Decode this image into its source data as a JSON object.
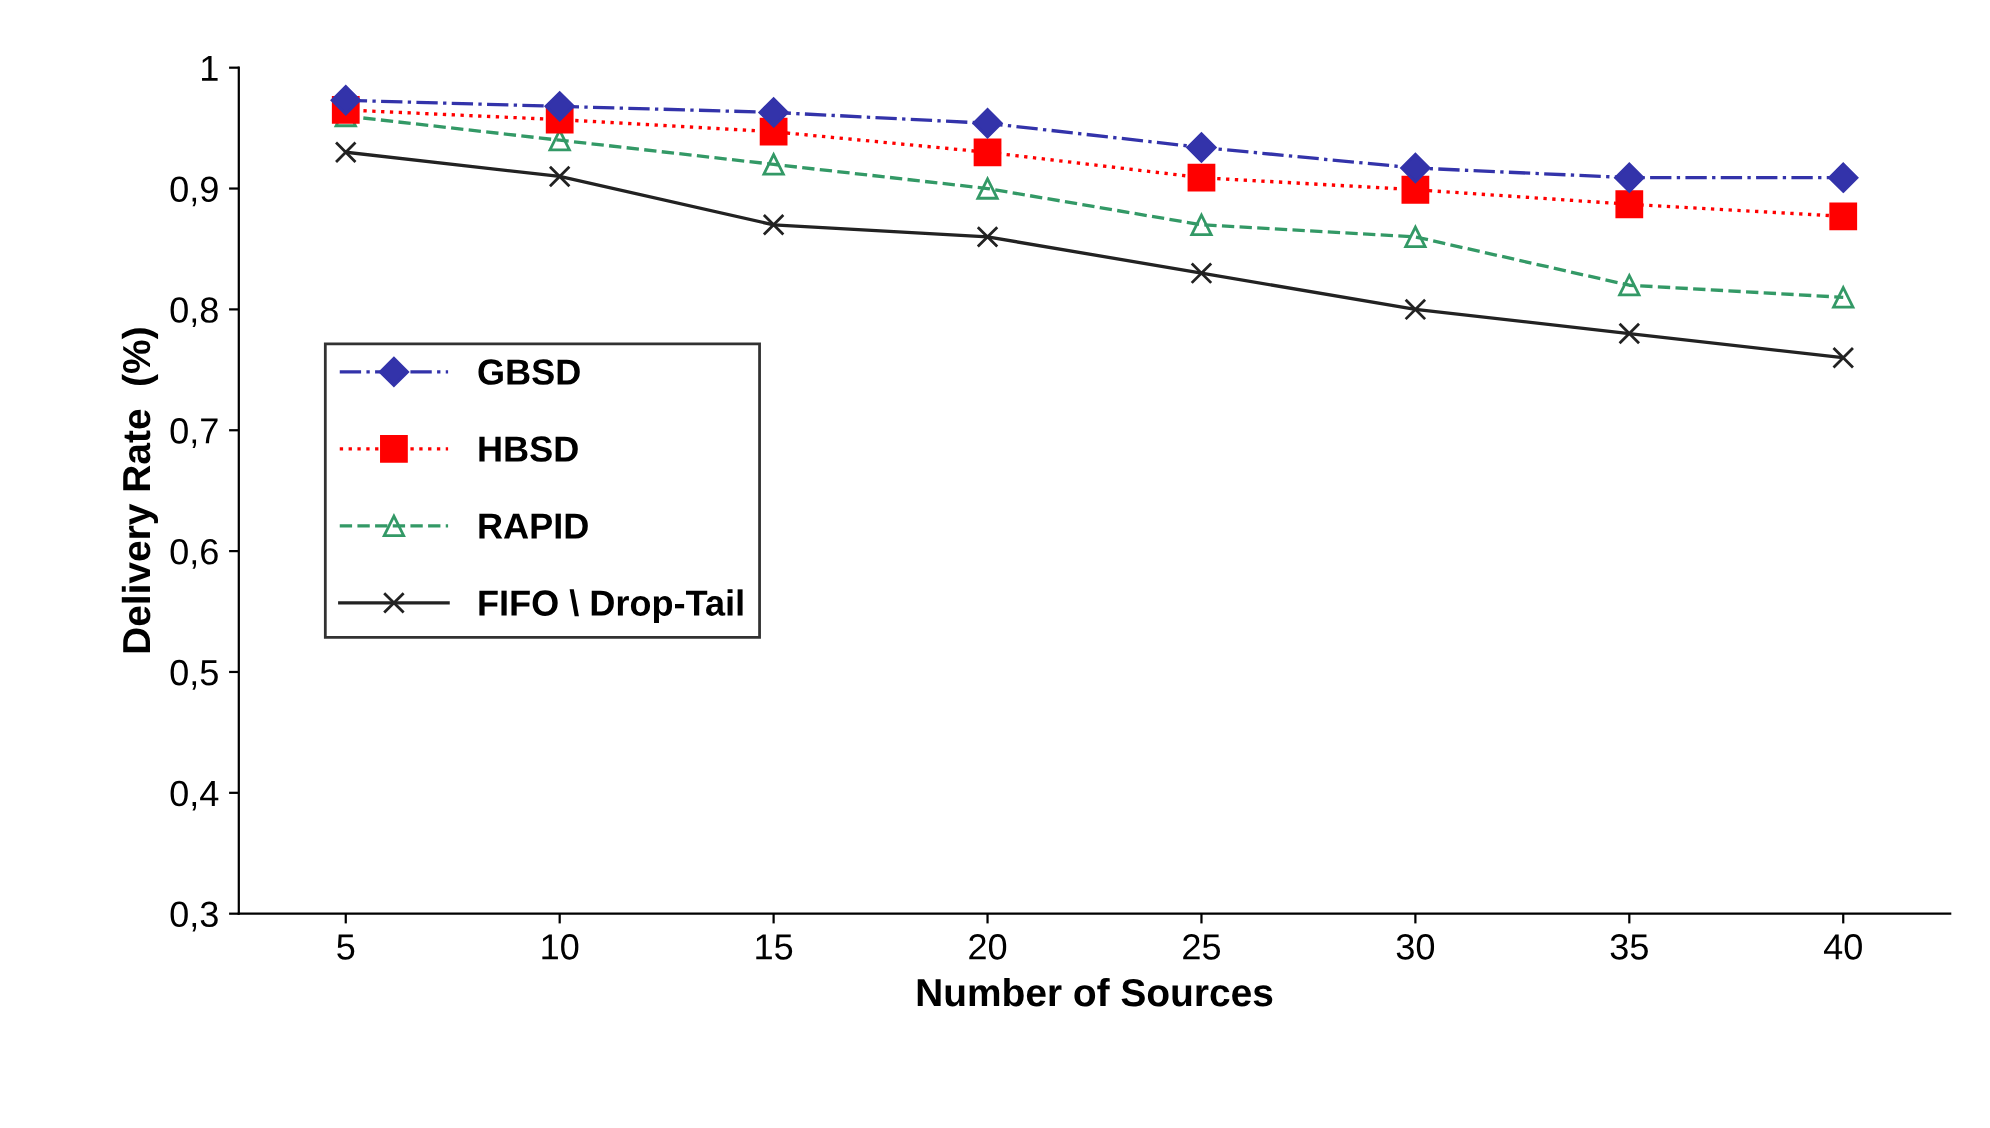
{
  "chart_data": {
    "type": "line",
    "xlabel": "Number of Sources",
    "ylabel": "Delivery Rate  (%)",
    "categories": [
      "5",
      "10",
      "15",
      "20",
      "25",
      "30",
      "35",
      "40"
    ],
    "series": [
      {
        "name": "GBSD",
        "color": "#3333aa",
        "marker": "diamond",
        "line_style": "dashdot",
        "values": [
          0.973,
          0.968,
          0.963,
          0.954,
          0.934,
          0.917,
          0.909,
          0.909
        ]
      },
      {
        "name": "HBSD",
        "color": "#ff0000",
        "marker": "square",
        "line_style": "dotted",
        "values": [
          0.965,
          0.957,
          0.947,
          0.93,
          0.909,
          0.899,
          0.887,
          0.877
        ]
      },
      {
        "name": "RAPID",
        "color": "#339966",
        "marker": "triangle",
        "line_style": "dashed",
        "values": [
          0.96,
          0.94,
          0.92,
          0.9,
          0.87,
          0.86,
          0.82,
          0.81
        ]
      },
      {
        "name": "FIFO \\ Drop-Tail",
        "color": "#222222",
        "marker": "cross",
        "line_style": "solid",
        "values": [
          0.93,
          0.91,
          0.87,
          0.86,
          0.83,
          0.8,
          0.78,
          0.76
        ]
      }
    ],
    "ylim": [
      0.3,
      1.0
    ],
    "yticks": [
      {
        "value": 0.3,
        "label": "0,3"
      },
      {
        "value": 0.4,
        "label": "0,4"
      },
      {
        "value": 0.5,
        "label": "0,5"
      },
      {
        "value": 0.6,
        "label": "0,6"
      },
      {
        "value": 0.7,
        "label": "0,7"
      },
      {
        "value": 0.8,
        "label": "0,8"
      },
      {
        "value": 0.9,
        "label": "0,9"
      },
      {
        "value": 1.0,
        "label": "1"
      }
    ],
    "grid": false,
    "legend": "left"
  }
}
